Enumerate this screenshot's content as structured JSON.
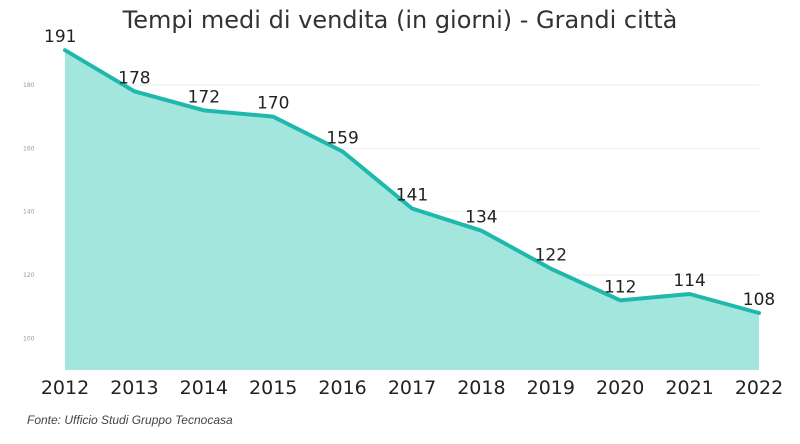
{
  "chart_data": {
    "type": "area",
    "title": "Tempi medi di vendita (in giorni) - Grandi città",
    "x": [
      "2012",
      "2013",
      "2014",
      "2015",
      "2016",
      "2017",
      "2018",
      "2019",
      "2020",
      "2021",
      "2022"
    ],
    "series": [
      {
        "values": [
          191,
          178,
          172,
          170,
          159,
          141,
          134,
          122,
          112,
          114,
          108
        ]
      }
    ],
    "xlabel": "",
    "ylabel": "",
    "yticks": [
      100,
      120,
      140,
      160,
      180
    ],
    "ylim": [
      90,
      192
    ],
    "grid": true,
    "colors": {
      "line": "#1fb8ac",
      "fill": "#a3e6dd"
    },
    "source": "Fonte: Ufficio Studi Gruppo Tecnocasa"
  }
}
